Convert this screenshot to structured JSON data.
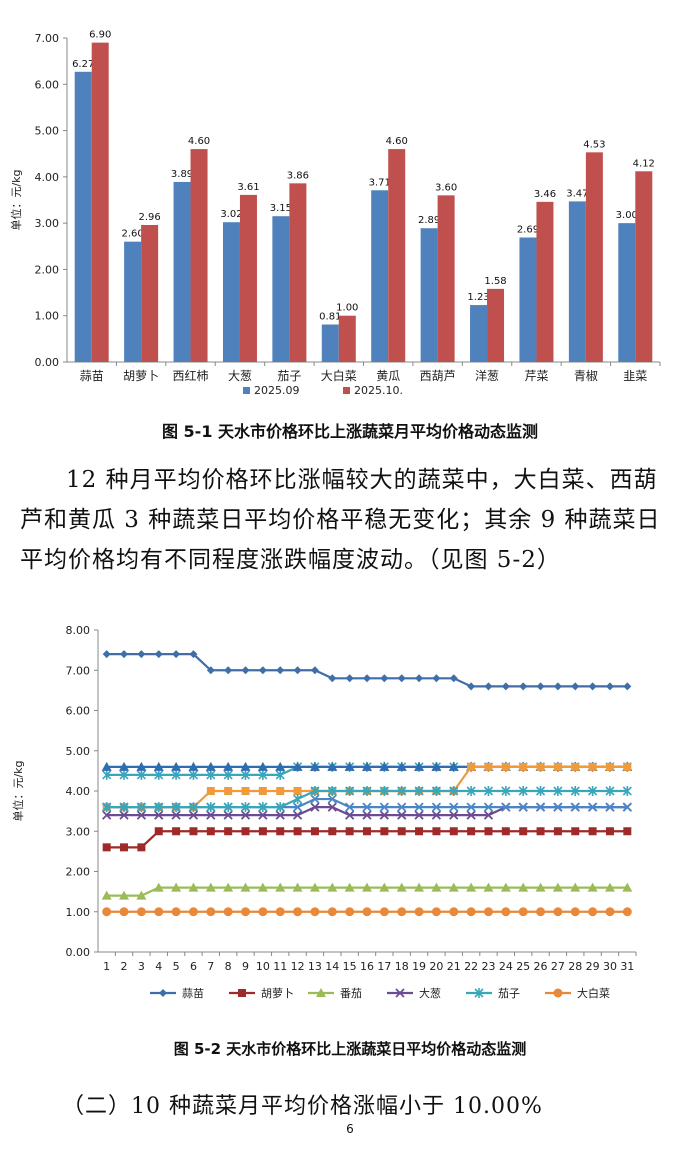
{
  "figure1": {
    "caption": "图 5-1    天水市价格环比上涨蔬菜月平均价格动态监测",
    "chart_data": {
      "type": "bar",
      "ylabel": "单位：元/kg",
      "ylim": [
        0,
        7
      ],
      "yticks": [
        "0.00",
        "1.00",
        "2.00",
        "3.00",
        "4.00",
        "5.00",
        "6.00",
        "7.00"
      ],
      "categories": [
        "蒜苗",
        "胡萝卜",
        "西红柿",
        "大葱",
        "茄子",
        "大白菜",
        "黄瓜",
        "西葫芦",
        "洋葱",
        "芹菜",
        "青椒",
        "韭菜"
      ],
      "series": [
        {
          "name": "2025.09",
          "color": "#4f81bd",
          "values": [
            6.27,
            2.6,
            3.89,
            3.02,
            3.15,
            0.81,
            3.71,
            2.89,
            1.23,
            2.69,
            3.47,
            3.0
          ],
          "labels": [
            "6.27",
            "2.60",
            "3.89",
            "3.02",
            "3.15",
            "0.81",
            "3.71",
            "2.89",
            "1.23",
            "2.69",
            "3.47",
            "3.00"
          ]
        },
        {
          "name": "2025.10.",
          "color": "#c0504d",
          "values": [
            6.9,
            2.96,
            4.6,
            3.61,
            3.86,
            1.0,
            4.6,
            3.6,
            1.58,
            3.46,
            4.53,
            4.12
          ],
          "labels": [
            "6.90",
            "2.96",
            "4.60",
            "3.61",
            "3.86",
            "1.00",
            "4.60",
            "3.60",
            "1.58",
            "3.46",
            "4.53",
            "4.12"
          ]
        }
      ],
      "legend": "bottom",
      "grid": false
    }
  },
  "paragraph": {
    "line1": "12 种月平均价格环比涨幅较大的蔬菜中，大白菜、西葫",
    "line2": "芦和黄瓜 3 种蔬菜日平均价格平稳无变化；其余 9 种蔬菜日",
    "line3": "平均价格均有不同程度涨跌幅度波动。（见图 5-2）"
  },
  "figure2": {
    "caption": "图 5-2  天水市价格环比上涨蔬菜日平均价格动态监测",
    "chart_data": {
      "type": "line",
      "ylabel": "单位：元/kg",
      "ylim": [
        0,
        8
      ],
      "yticks": [
        "0.00",
        "1.00",
        "2.00",
        "3.00",
        "4.00",
        "5.00",
        "6.00",
        "7.00",
        "8.00"
      ],
      "x": [
        1,
        2,
        3,
        4,
        5,
        6,
        7,
        8,
        9,
        10,
        11,
        12,
        13,
        14,
        15,
        16,
        17,
        18,
        19,
        20,
        21,
        22,
        23,
        24,
        25,
        26,
        27,
        28,
        29,
        30,
        31
      ],
      "legend": "bottom",
      "grid": false,
      "series": [
        {
          "name": "蒜苗",
          "color": "#3f6ea8",
          "marker": "diamond",
          "values": [
            7.4,
            7.4,
            7.4,
            7.4,
            7.4,
            7.4,
            7.0,
            7.0,
            7.0,
            7.0,
            7.0,
            7.0,
            7.0,
            6.8,
            6.8,
            6.8,
            6.8,
            6.8,
            6.8,
            6.8,
            6.8,
            6.6,
            6.6,
            6.6,
            6.6,
            6.6,
            6.6,
            6.6,
            6.6,
            6.6,
            6.6
          ]
        },
        {
          "name": "胡萝卜",
          "color": "#9e2a2a",
          "marker": "square",
          "values": [
            2.6,
            2.6,
            2.6,
            3.0,
            3.0,
            3.0,
            3.0,
            3.0,
            3.0,
            3.0,
            3.0,
            3.0,
            3.0,
            3.0,
            3.0,
            3.0,
            3.0,
            3.0,
            3.0,
            3.0,
            3.0,
            3.0,
            3.0,
            3.0,
            3.0,
            3.0,
            3.0,
            3.0,
            3.0,
            3.0,
            3.0
          ]
        },
        {
          "name": "番茄",
          "color": "#9bbb59",
          "marker": "triangle",
          "values": [
            1.4,
            1.4,
            1.4,
            1.6,
            1.6,
            1.6,
            1.6,
            1.6,
            1.6,
            1.6,
            1.6,
            1.6,
            1.6,
            1.6,
            1.6,
            1.6,
            1.6,
            1.6,
            1.6,
            1.6,
            1.6,
            1.6,
            1.6,
            1.6,
            1.6,
            1.6,
            1.6,
            1.6,
            1.6,
            1.6,
            1.6
          ]
        },
        {
          "name": "大葱",
          "color": "#6a4c93",
          "marker": "x",
          "values": [
            3.4,
            3.4,
            3.4,
            3.4,
            3.4,
            3.4,
            3.4,
            3.4,
            3.4,
            3.4,
            3.4,
            3.4,
            3.6,
            3.6,
            3.4,
            3.4,
            3.4,
            3.4,
            3.4,
            3.4,
            3.4,
            3.4,
            3.4,
            3.6,
            3.6,
            3.6,
            3.6,
            3.6,
            3.6,
            3.6,
            3.6
          ]
        },
        {
          "name": "茄子",
          "color": "#3aa6b9",
          "marker": "star",
          "values": [
            4.4,
            4.4,
            4.4,
            4.4,
            4.4,
            4.4,
            4.4,
            4.4,
            4.4,
            4.4,
            4.4,
            4.6,
            4.6,
            4.6,
            4.6,
            4.6,
            4.6,
            4.6,
            4.6,
            4.6,
            4.6,
            4.6,
            4.6,
            4.6,
            4.6,
            4.6,
            4.6,
            4.6,
            4.6,
            4.6,
            4.6
          ]
        },
        {
          "name": "大白菜",
          "color": "#e8883a",
          "marker": "circle",
          "values": [
            1.0,
            1.0,
            1.0,
            1.0,
            1.0,
            1.0,
            1.0,
            1.0,
            1.0,
            1.0,
            1.0,
            1.0,
            1.0,
            1.0,
            1.0,
            1.0,
            1.0,
            1.0,
            1.0,
            1.0,
            1.0,
            1.0,
            1.0,
            1.0,
            1.0,
            1.0,
            1.0,
            1.0,
            1.0,
            1.0,
            1.0
          ]
        },
        {
          "name": "",
          "color": "#2f6db0",
          "marker": "triangle",
          "legend": false,
          "values": [
            4.6,
            4.6,
            4.6,
            4.6,
            4.6,
            4.6,
            4.6,
            4.6,
            4.6,
            4.6,
            4.6,
            4.6,
            4.6,
            4.6,
            4.6,
            4.6,
            4.6,
            4.6,
            4.6,
            4.6,
            4.6,
            4.6,
            4.6,
            4.6,
            4.6,
            4.6,
            4.6,
            4.6,
            4.6,
            4.6,
            4.6
          ]
        },
        {
          "name": "",
          "color": "#f09a3e",
          "marker": "square",
          "legend": false,
          "values": [
            3.6,
            3.6,
            3.6,
            3.6,
            3.6,
            3.6,
            4.0,
            4.0,
            4.0,
            4.0,
            4.0,
            4.0,
            4.0,
            4.0,
            4.0,
            4.0,
            4.0,
            4.0,
            4.0,
            4.0,
            4.0,
            4.6,
            4.6,
            4.6,
            4.6,
            4.6,
            4.6,
            4.6,
            4.6,
            4.6,
            4.6
          ]
        },
        {
          "name": "",
          "color": "#4a86c5",
          "marker": "x",
          "legend": false,
          "values": [
            3.6,
            3.6,
            3.6,
            3.6,
            3.6,
            3.6,
            3.6,
            3.6,
            3.6,
            3.6,
            3.6,
            3.6,
            3.8,
            3.8,
            3.6,
            3.6,
            3.6,
            3.6,
            3.6,
            3.6,
            3.6,
            3.6,
            3.6,
            3.6,
            3.6,
            3.6,
            3.6,
            3.6,
            3.6,
            3.6,
            3.6
          ]
        },
        {
          "name": "",
          "color": "#3aa6b9",
          "marker": "star",
          "legend": false,
          "values": [
            3.6,
            3.6,
            3.6,
            3.6,
            3.6,
            3.6,
            3.6,
            3.6,
            3.6,
            3.6,
            3.6,
            3.8,
            4.0,
            4.0,
            4.0,
            4.0,
            4.0,
            4.0,
            4.0,
            4.0,
            4.0,
            4.0,
            4.0,
            4.0,
            4.0,
            4.0,
            4.0,
            4.0,
            4.0,
            4.0,
            4.0
          ]
        }
      ]
    }
  },
  "heading": "（二）10 种蔬菜月平均价格涨幅小于 10.00%",
  "page_number": "6"
}
